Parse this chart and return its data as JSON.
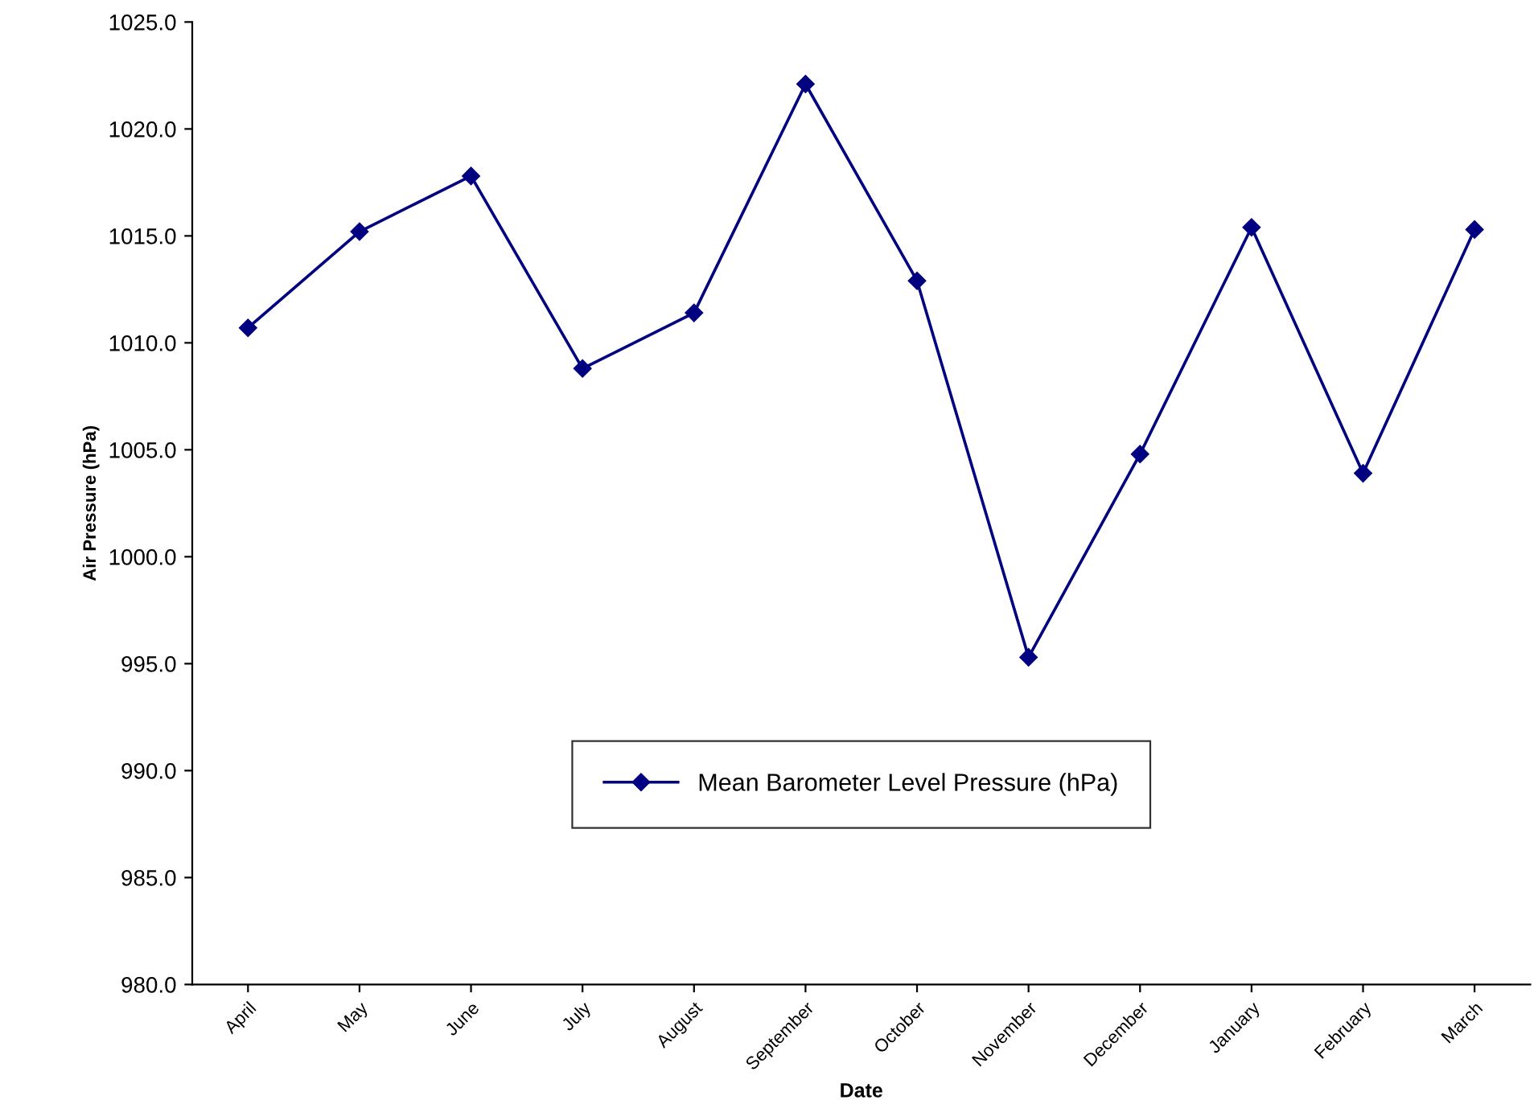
{
  "chart_data": {
    "type": "line",
    "xlabel": "Date",
    "ylabel": "Air Pressure (hPa)",
    "categories": [
      "April",
      "May",
      "June",
      "July",
      "August",
      "September",
      "October",
      "November",
      "December",
      "January",
      "February",
      "March"
    ],
    "series": [
      {
        "name": "Mean Barometer Level Pressure (hPa)",
        "color": "#000080",
        "values": [
          1010.7,
          1015.2,
          1017.8,
          1008.8,
          1011.4,
          1022.1,
          1012.9,
          995.3,
          1004.8,
          1015.4,
          1003.9,
          1015.3
        ]
      }
    ],
    "ylim": [
      980,
      1025
    ],
    "yticks": [
      {
        "value": 980,
        "label": "980.0"
      },
      {
        "value": 985,
        "label": "985.0"
      },
      {
        "value": 990,
        "label": "990.0"
      },
      {
        "value": 995,
        "label": "995.0"
      },
      {
        "value": 1000,
        "label": "1000.0"
      },
      {
        "value": 1005,
        "label": "1005.0"
      },
      {
        "value": 1010,
        "label": "1010.0"
      },
      {
        "value": 1015,
        "label": "1015.0"
      },
      {
        "value": 1020,
        "label": "1020.0"
      },
      {
        "value": 1025,
        "label": "1025.0"
      }
    ],
    "grid": false,
    "legend": "bottom",
    "marker": "diamond",
    "line_style": "solid"
  }
}
